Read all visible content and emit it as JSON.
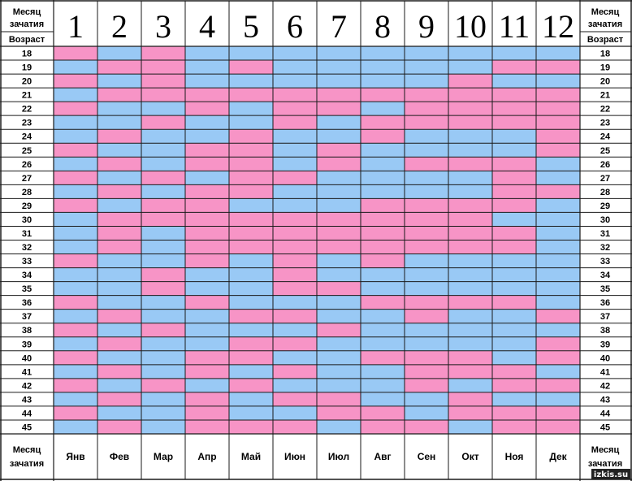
{
  "header": {
    "corner_top": [
      "Месяц",
      "зачатия"
    ],
    "corner_bottom": "Возраст"
  },
  "footer": {
    "corner": [
      "Месяц",
      "зачатия"
    ]
  },
  "watermark": "izkis.su",
  "colors": {
    "pink": "#f794c6",
    "blue": "#99c9f5",
    "grid": "#1a1a1a",
    "background": "#ffffff"
  },
  "chart_data": {
    "type": "heatmap",
    "legend": null,
    "columns": [
      {
        "num": "1",
        "abbr": "Янв"
      },
      {
        "num": "2",
        "abbr": "Фев"
      },
      {
        "num": "3",
        "abbr": "Мар"
      },
      {
        "num": "4",
        "abbr": "Апр"
      },
      {
        "num": "5",
        "abbr": "Май"
      },
      {
        "num": "6",
        "abbr": "Июн"
      },
      {
        "num": "7",
        "abbr": "Июл"
      },
      {
        "num": "8",
        "abbr": "Авг"
      },
      {
        "num": "9",
        "abbr": "Сен"
      },
      {
        "num": "10",
        "abbr": "Окт"
      },
      {
        "num": "11",
        "abbr": "Ноя"
      },
      {
        "num": "12",
        "abbr": "Дек"
      }
    ],
    "rows": [
      18,
      19,
      20,
      21,
      22,
      23,
      24,
      25,
      26,
      27,
      28,
      29,
      30,
      31,
      32,
      33,
      34,
      35,
      36,
      37,
      38,
      39,
      40,
      41,
      42,
      43,
      44,
      45
    ],
    "cells": [
      "PBPBBBBBBBBB",
      "BPPBPBBBBBPP",
      "PBPBBBBBBPBB",
      "BPPPPPPPPPPP",
      "PBBPBPPBPPPP",
      "BBPBBPBPPPPP",
      "BPBBPBBPBBBP",
      "PBBPPBPBBBBP",
      "BPBPPBPBPPPB",
      "PBPBPPBBBBPB",
      "BPBPPBBBBBPP",
      "PBPPBBBPPPPB",
      "BPPPPPPPPPBB",
      "BPBPPPPPPPPB",
      "BPBPPPPPPPPB",
      "PBBPBPBPBBBB",
      "BBPBBPBBBBBB",
      "BBPBBPPBBBBB",
      "PBBPBBBPPPPB",
      "BPBBPPBBPBBP",
      "PBPBBBPBBBBB",
      "BPBBPPBBBBBP",
      "PBBPPBBPPPBP",
      "BPBPBPBBPPPB",
      "PBPBPBBBPBPP",
      "BPBPBPPBBPBB",
      "PBBPBBPPBPPP",
      "BPBPPPBPPBPP"
    ]
  }
}
